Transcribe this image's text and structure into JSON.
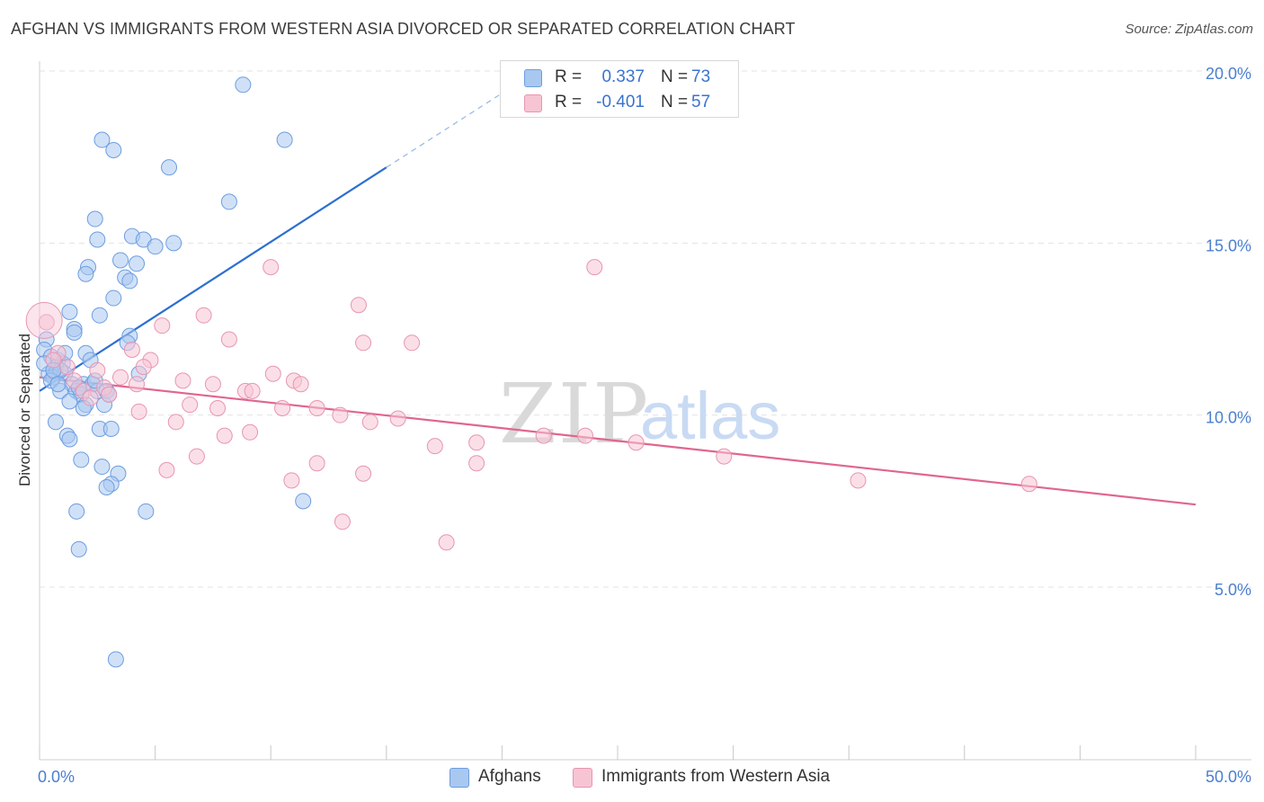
{
  "title": "AFGHAN VS IMMIGRANTS FROM WESTERN ASIA DIVORCED OR SEPARATED CORRELATION CHART",
  "source": "Source: ZipAtlas.com",
  "watermark": {
    "zip": "ZIP",
    "atlas": "atlas"
  },
  "legend_top": [
    {
      "r_label": "R =",
      "r_value": "0.337",
      "n_label": "N =",
      "n_value": "73",
      "color": "#a9c8f0",
      "border": "#6d9de0"
    },
    {
      "r_label": "R =",
      "r_value": "-0.401",
      "n_label": "N =",
      "n_value": "57",
      "color": "#f7c4d4",
      "border": "#e895b1"
    }
  ],
  "legend_bottom": [
    {
      "label": "Afghans",
      "color": "#a9c8f0",
      "border": "#6d9de0"
    },
    {
      "label": "Immigrants from Western Asia",
      "color": "#f7c4d4",
      "border": "#e895b1"
    }
  ],
  "chart_data": {
    "type": "scatter",
    "title": "AFGHAN VS IMMIGRANTS FROM WESTERN ASIA DIVORCED OR SEPARATED CORRELATION CHART",
    "xlabel": "",
    "ylabel": "Divorced or Separated",
    "xlim": [
      0,
      50
    ],
    "ylim": [
      0,
      20.8
    ],
    "x_tick_labels": [
      "0.0%",
      "50.0%"
    ],
    "y_ticks": [
      5,
      10,
      15,
      20
    ],
    "y_tick_labels": [
      "5.0%",
      "10.0%",
      "15.0%",
      "20.0%"
    ],
    "grid": true,
    "series": [
      {
        "name": "Afghans",
        "color": "#6d9de0",
        "fill": "#a9c8f0",
        "trend": {
          "x0": 0,
          "y0": 10.7,
          "x1": 15,
          "y1": 17.2,
          "dash_to_x": 21.5,
          "dash_to_y": 20.0,
          "color": "#2c6fd1"
        },
        "points": [
          [
            8.8,
            19.6
          ],
          [
            2.7,
            18.0
          ],
          [
            10.6,
            18.0
          ],
          [
            3.2,
            17.7
          ],
          [
            5.6,
            17.2
          ],
          [
            8.2,
            16.2
          ],
          [
            2.4,
            15.7
          ],
          [
            4.0,
            15.2
          ],
          [
            2.5,
            15.1
          ],
          [
            4.5,
            15.1
          ],
          [
            5.8,
            15.0
          ],
          [
            5.0,
            14.9
          ],
          [
            3.5,
            14.5
          ],
          [
            4.2,
            14.4
          ],
          [
            2.1,
            14.3
          ],
          [
            2.0,
            14.1
          ],
          [
            3.7,
            14.0
          ],
          [
            3.9,
            13.9
          ],
          [
            3.2,
            13.4
          ],
          [
            1.3,
            13.0
          ],
          [
            2.6,
            12.9
          ],
          [
            1.5,
            12.5
          ],
          [
            1.5,
            12.4
          ],
          [
            3.9,
            12.3
          ],
          [
            0.3,
            12.2
          ],
          [
            3.8,
            12.1
          ],
          [
            0.2,
            11.9
          ],
          [
            2.0,
            11.8
          ],
          [
            0.5,
            11.7
          ],
          [
            2.2,
            11.6
          ],
          [
            0.8,
            11.6
          ],
          [
            1.0,
            11.5
          ],
          [
            0.7,
            11.4
          ],
          [
            0.4,
            11.2
          ],
          [
            0.6,
            11.1
          ],
          [
            1.1,
            11.2
          ],
          [
            0.9,
            11.3
          ],
          [
            4.3,
            11.2
          ],
          [
            0.5,
            11.0
          ],
          [
            1.4,
            10.9
          ],
          [
            1.9,
            10.9
          ],
          [
            2.3,
            10.9
          ],
          [
            0.9,
            10.7
          ],
          [
            1.6,
            10.7
          ],
          [
            2.5,
            10.7
          ],
          [
            2.9,
            10.7
          ],
          [
            1.8,
            10.6
          ],
          [
            1.3,
            10.4
          ],
          [
            2.0,
            10.3
          ],
          [
            2.8,
            10.3
          ],
          [
            1.9,
            10.2
          ],
          [
            0.7,
            9.8
          ],
          [
            1.2,
            9.4
          ],
          [
            1.3,
            9.3
          ],
          [
            2.6,
            9.6
          ],
          [
            3.1,
            9.6
          ],
          [
            1.8,
            8.7
          ],
          [
            2.7,
            8.5
          ],
          [
            3.4,
            8.3
          ],
          [
            3.1,
            8.0
          ],
          [
            2.9,
            7.9
          ],
          [
            11.4,
            7.5
          ],
          [
            1.6,
            7.2
          ],
          [
            4.6,
            7.2
          ],
          [
            1.7,
            6.1
          ],
          [
            3.3,
            2.9
          ],
          [
            0.2,
            11.5
          ],
          [
            1.1,
            11.8
          ],
          [
            0.6,
            11.3
          ],
          [
            2.4,
            11.0
          ],
          [
            1.7,
            10.8
          ],
          [
            0.8,
            10.9
          ],
          [
            3.0,
            10.6
          ]
        ]
      },
      {
        "name": "Immigrants from Western Asia",
        "color": "#e895b1",
        "fill": "#f7c4d4",
        "trend": {
          "x0": 0,
          "y0": 11.1,
          "x1": 50,
          "y1": 7.4,
          "color": "#e0668f"
        },
        "points": [
          [
            0.3,
            12.7
          ],
          [
            0.8,
            11.8
          ],
          [
            1.2,
            11.4
          ],
          [
            0.6,
            11.6
          ],
          [
            2.5,
            11.3
          ],
          [
            1.5,
            11.0
          ],
          [
            1.9,
            10.7
          ],
          [
            2.8,
            10.8
          ],
          [
            3.5,
            11.1
          ],
          [
            4.2,
            10.9
          ],
          [
            4.0,
            11.9
          ],
          [
            4.8,
            11.6
          ],
          [
            4.5,
            11.4
          ],
          [
            5.3,
            12.6
          ],
          [
            7.1,
            12.9
          ],
          [
            8.2,
            12.2
          ],
          [
            10.0,
            14.3
          ],
          [
            13.8,
            13.2
          ],
          [
            14.0,
            12.1
          ],
          [
            16.1,
            12.1
          ],
          [
            6.2,
            11.0
          ],
          [
            7.5,
            10.9
          ],
          [
            8.9,
            10.7
          ],
          [
            9.2,
            10.7
          ],
          [
            10.1,
            11.2
          ],
          [
            11.0,
            11.0
          ],
          [
            11.3,
            10.9
          ],
          [
            6.5,
            10.3
          ],
          [
            7.7,
            10.2
          ],
          [
            10.5,
            10.2
          ],
          [
            12.0,
            10.2
          ],
          [
            13.0,
            10.0
          ],
          [
            14.3,
            9.8
          ],
          [
            15.5,
            9.9
          ],
          [
            4.3,
            10.1
          ],
          [
            5.9,
            9.8
          ],
          [
            8.0,
            9.4
          ],
          [
            9.1,
            9.5
          ],
          [
            17.1,
            9.1
          ],
          [
            18.9,
            9.2
          ],
          [
            21.8,
            9.4
          ],
          [
            23.6,
            9.4
          ],
          [
            25.8,
            9.2
          ],
          [
            29.6,
            8.8
          ],
          [
            35.4,
            8.1
          ],
          [
            42.8,
            8.0
          ],
          [
            6.8,
            8.8
          ],
          [
            5.5,
            8.4
          ],
          [
            12.0,
            8.6
          ],
          [
            14.0,
            8.3
          ],
          [
            18.9,
            8.6
          ],
          [
            10.9,
            8.1
          ],
          [
            13.1,
            6.9
          ],
          [
            17.6,
            6.3
          ],
          [
            24.0,
            14.3
          ],
          [
            2.2,
            10.5
          ],
          [
            3.0,
            10.6
          ]
        ]
      }
    ]
  }
}
